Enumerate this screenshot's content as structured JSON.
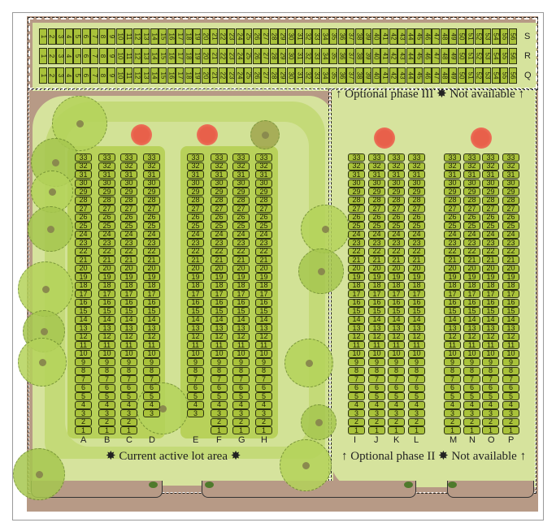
{
  "top_rows": [
    {
      "letter": "S",
      "lots_from": 1,
      "lots_to": 56
    },
    {
      "letter": "R",
      "lots_from": 1,
      "lots_to": 56
    },
    {
      "letter": "Q",
      "lots_from": 1,
      "lots_to": 56
    }
  ],
  "left_section": {
    "columns": [
      {
        "letter": "A",
        "lots_from": 1,
        "lots_to": 33
      },
      {
        "letter": "B",
        "lots_from": 1,
        "lots_to": 33
      },
      {
        "letter": "C",
        "lots_from": 1,
        "lots_to": 33
      },
      {
        "letter": "D",
        "lots_from": 3,
        "lots_to": 33
      },
      {
        "letter": "E",
        "lots_from": 3,
        "lots_to": 33
      },
      {
        "letter": "F",
        "lots_from": 1,
        "lots_to": 33
      },
      {
        "letter": "G",
        "lots_from": 1,
        "lots_to": 33
      },
      {
        "letter": "H",
        "lots_from": 1,
        "lots_to": 33
      }
    ],
    "caption": "✸ Current active lot area ✸"
  },
  "right_section": {
    "columns": [
      {
        "letter": "I",
        "lots_from": 1,
        "lots_to": 33
      },
      {
        "letter": "J",
        "lots_from": 1,
        "lots_to": 33
      },
      {
        "letter": "K",
        "lots_from": 1,
        "lots_to": 33
      },
      {
        "letter": "L",
        "lots_from": 1,
        "lots_to": 33
      },
      {
        "letter": "M",
        "lots_from": 1,
        "lots_to": 33
      },
      {
        "letter": "N",
        "lots_from": 1,
        "lots_to": 33
      },
      {
        "letter": "O",
        "lots_from": 1,
        "lots_to": 33
      },
      {
        "letter": "P",
        "lots_from": 1,
        "lots_to": 33
      }
    ],
    "caption": "↑ Optional phase II ✸ Not available ↑"
  },
  "phase3_caption": "↑ Optional phase III ✸ Not available ↑",
  "colors": {
    "lot": "#a9c23a",
    "lawn": "#d6e39d",
    "ground": "#b79a86",
    "flower": "#e8604a"
  }
}
